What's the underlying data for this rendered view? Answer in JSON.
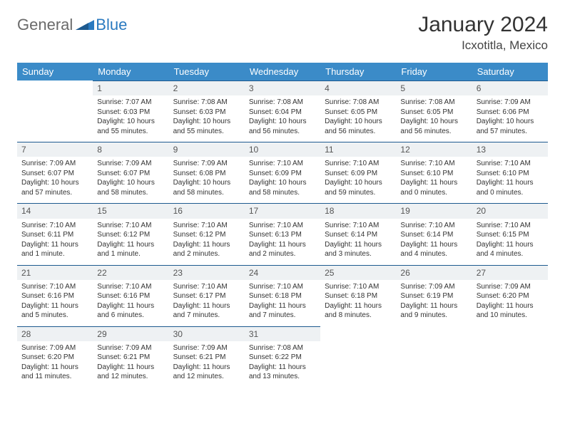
{
  "logo": {
    "general": "General",
    "blue": "Blue"
  },
  "title": "January 2024",
  "location": "Icxotitla, Mexico",
  "colors": {
    "header_bg": "#3b8bc8",
    "header_text": "#ffffff",
    "daynum_bg": "#eef1f3",
    "daynum_border": "#1d5a8f",
    "logo_grey": "#6a6a6a",
    "logo_blue": "#2a7ac0"
  },
  "dayNames": [
    "Sunday",
    "Monday",
    "Tuesday",
    "Wednesday",
    "Thursday",
    "Friday",
    "Saturday"
  ],
  "weeks": [
    [
      {
        "num": "",
        "lines": []
      },
      {
        "num": "1",
        "lines": [
          "Sunrise: 7:07 AM",
          "Sunset: 6:03 PM",
          "Daylight: 10 hours",
          "and 55 minutes."
        ]
      },
      {
        "num": "2",
        "lines": [
          "Sunrise: 7:08 AM",
          "Sunset: 6:03 PM",
          "Daylight: 10 hours",
          "and 55 minutes."
        ]
      },
      {
        "num": "3",
        "lines": [
          "Sunrise: 7:08 AM",
          "Sunset: 6:04 PM",
          "Daylight: 10 hours",
          "and 56 minutes."
        ]
      },
      {
        "num": "4",
        "lines": [
          "Sunrise: 7:08 AM",
          "Sunset: 6:05 PM",
          "Daylight: 10 hours",
          "and 56 minutes."
        ]
      },
      {
        "num": "5",
        "lines": [
          "Sunrise: 7:08 AM",
          "Sunset: 6:05 PM",
          "Daylight: 10 hours",
          "and 56 minutes."
        ]
      },
      {
        "num": "6",
        "lines": [
          "Sunrise: 7:09 AM",
          "Sunset: 6:06 PM",
          "Daylight: 10 hours",
          "and 57 minutes."
        ]
      }
    ],
    [
      {
        "num": "7",
        "lines": [
          "Sunrise: 7:09 AM",
          "Sunset: 6:07 PM",
          "Daylight: 10 hours",
          "and 57 minutes."
        ]
      },
      {
        "num": "8",
        "lines": [
          "Sunrise: 7:09 AM",
          "Sunset: 6:07 PM",
          "Daylight: 10 hours",
          "and 58 minutes."
        ]
      },
      {
        "num": "9",
        "lines": [
          "Sunrise: 7:09 AM",
          "Sunset: 6:08 PM",
          "Daylight: 10 hours",
          "and 58 minutes."
        ]
      },
      {
        "num": "10",
        "lines": [
          "Sunrise: 7:10 AM",
          "Sunset: 6:09 PM",
          "Daylight: 10 hours",
          "and 58 minutes."
        ]
      },
      {
        "num": "11",
        "lines": [
          "Sunrise: 7:10 AM",
          "Sunset: 6:09 PM",
          "Daylight: 10 hours",
          "and 59 minutes."
        ]
      },
      {
        "num": "12",
        "lines": [
          "Sunrise: 7:10 AM",
          "Sunset: 6:10 PM",
          "Daylight: 11 hours",
          "and 0 minutes."
        ]
      },
      {
        "num": "13",
        "lines": [
          "Sunrise: 7:10 AM",
          "Sunset: 6:10 PM",
          "Daylight: 11 hours",
          "and 0 minutes."
        ]
      }
    ],
    [
      {
        "num": "14",
        "lines": [
          "Sunrise: 7:10 AM",
          "Sunset: 6:11 PM",
          "Daylight: 11 hours",
          "and 1 minute."
        ]
      },
      {
        "num": "15",
        "lines": [
          "Sunrise: 7:10 AM",
          "Sunset: 6:12 PM",
          "Daylight: 11 hours",
          "and 1 minute."
        ]
      },
      {
        "num": "16",
        "lines": [
          "Sunrise: 7:10 AM",
          "Sunset: 6:12 PM",
          "Daylight: 11 hours",
          "and 2 minutes."
        ]
      },
      {
        "num": "17",
        "lines": [
          "Sunrise: 7:10 AM",
          "Sunset: 6:13 PM",
          "Daylight: 11 hours",
          "and 2 minutes."
        ]
      },
      {
        "num": "18",
        "lines": [
          "Sunrise: 7:10 AM",
          "Sunset: 6:14 PM",
          "Daylight: 11 hours",
          "and 3 minutes."
        ]
      },
      {
        "num": "19",
        "lines": [
          "Sunrise: 7:10 AM",
          "Sunset: 6:14 PM",
          "Daylight: 11 hours",
          "and 4 minutes."
        ]
      },
      {
        "num": "20",
        "lines": [
          "Sunrise: 7:10 AM",
          "Sunset: 6:15 PM",
          "Daylight: 11 hours",
          "and 4 minutes."
        ]
      }
    ],
    [
      {
        "num": "21",
        "lines": [
          "Sunrise: 7:10 AM",
          "Sunset: 6:16 PM",
          "Daylight: 11 hours",
          "and 5 minutes."
        ]
      },
      {
        "num": "22",
        "lines": [
          "Sunrise: 7:10 AM",
          "Sunset: 6:16 PM",
          "Daylight: 11 hours",
          "and 6 minutes."
        ]
      },
      {
        "num": "23",
        "lines": [
          "Sunrise: 7:10 AM",
          "Sunset: 6:17 PM",
          "Daylight: 11 hours",
          "and 7 minutes."
        ]
      },
      {
        "num": "24",
        "lines": [
          "Sunrise: 7:10 AM",
          "Sunset: 6:18 PM",
          "Daylight: 11 hours",
          "and 7 minutes."
        ]
      },
      {
        "num": "25",
        "lines": [
          "Sunrise: 7:10 AM",
          "Sunset: 6:18 PM",
          "Daylight: 11 hours",
          "and 8 minutes."
        ]
      },
      {
        "num": "26",
        "lines": [
          "Sunrise: 7:09 AM",
          "Sunset: 6:19 PM",
          "Daylight: 11 hours",
          "and 9 minutes."
        ]
      },
      {
        "num": "27",
        "lines": [
          "Sunrise: 7:09 AM",
          "Sunset: 6:20 PM",
          "Daylight: 11 hours",
          "and 10 minutes."
        ]
      }
    ],
    [
      {
        "num": "28",
        "lines": [
          "Sunrise: 7:09 AM",
          "Sunset: 6:20 PM",
          "Daylight: 11 hours",
          "and 11 minutes."
        ]
      },
      {
        "num": "29",
        "lines": [
          "Sunrise: 7:09 AM",
          "Sunset: 6:21 PM",
          "Daylight: 11 hours",
          "and 12 minutes."
        ]
      },
      {
        "num": "30",
        "lines": [
          "Sunrise: 7:09 AM",
          "Sunset: 6:21 PM",
          "Daylight: 11 hours",
          "and 12 minutes."
        ]
      },
      {
        "num": "31",
        "lines": [
          "Sunrise: 7:08 AM",
          "Sunset: 6:22 PM",
          "Daylight: 11 hours",
          "and 13 minutes."
        ]
      },
      {
        "num": "",
        "lines": []
      },
      {
        "num": "",
        "lines": []
      },
      {
        "num": "",
        "lines": []
      }
    ]
  ]
}
